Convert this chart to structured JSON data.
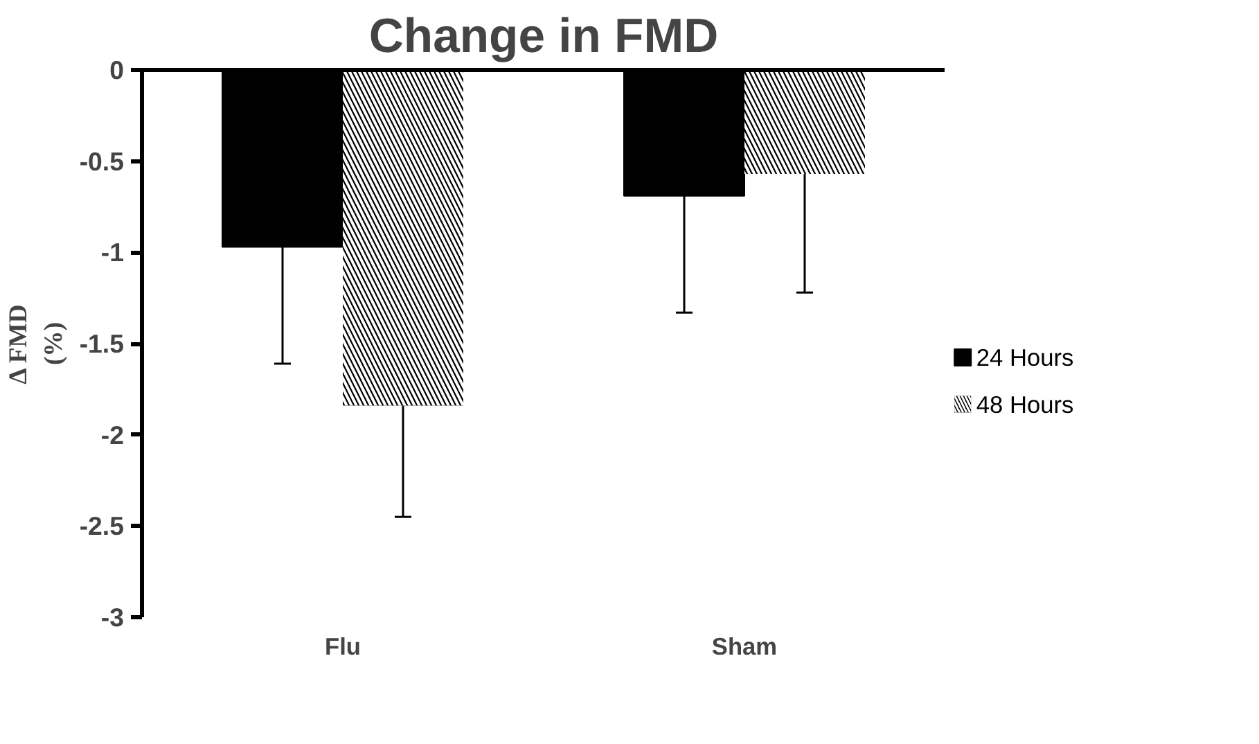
{
  "chart_data": {
    "type": "bar",
    "title": "Change in FMD",
    "ylabel": "Δ FMD\n(%)",
    "categories": [
      "Flu",
      "Sham"
    ],
    "series": [
      {
        "name": "24 Hours",
        "color": "#000000",
        "values": [
          -0.97,
          -0.69
        ],
        "errors": [
          [
            -1.61,
            -0.97
          ],
          [
            -1.33,
            -0.69
          ]
        ]
      },
      {
        "name": "48 Hours",
        "color": "#000000",
        "values": [
          -1.84,
          -0.57
        ],
        "errors": [
          [
            -2.45,
            -1.84
          ],
          [
            -1.22,
            -0.57
          ]
        ]
      }
    ],
    "ylim": [
      -3,
      0
    ],
    "yticks": [
      0,
      -0.5,
      -1,
      -1.5,
      -2,
      -2.5,
      -3
    ],
    "grid": false,
    "legend": "right"
  }
}
